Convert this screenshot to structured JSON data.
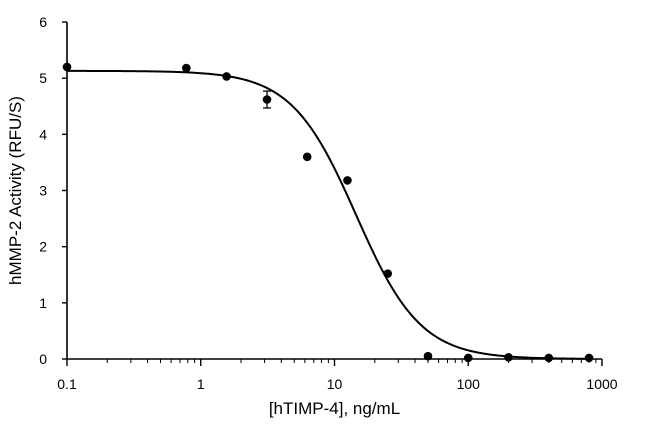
{
  "chart_data": {
    "type": "scatter",
    "title": "",
    "xlabel": "[hTIMP-4], ng/mL",
    "ylabel": "hMMP-2 Activity  (RFU/S)",
    "x_scale": "log",
    "xlim": [
      0.1,
      1000
    ],
    "ylim": [
      0,
      6
    ],
    "x_ticks": [
      0.1,
      1,
      10,
      100,
      1000
    ],
    "x_tick_labels": [
      "0.1",
      "1",
      "10",
      "100",
      "1000"
    ],
    "y_ticks": [
      0,
      1,
      2,
      3,
      4,
      5,
      6
    ],
    "y_tick_labels": [
      "0",
      "1",
      "2",
      "3",
      "4",
      "5",
      "6"
    ],
    "grid": false,
    "legend": "none",
    "series": [
      {
        "points": [
          {
            "x": 0.1,
            "y": 5.2
          },
          {
            "x": 0.78,
            "y": 5.18
          },
          {
            "x": 1.56,
            "y": 5.03
          },
          {
            "x": 3.13,
            "y": 4.62,
            "err": 0.15
          },
          {
            "x": 6.25,
            "y": 3.6
          },
          {
            "x": 12.5,
            "y": 3.18
          },
          {
            "x": 25,
            "y": 1.52
          },
          {
            "x": 50,
            "y": 0.05
          },
          {
            "x": 100,
            "y": 0.02
          },
          {
            "x": 200,
            "y": 0.03
          },
          {
            "x": 400,
            "y": 0.02
          },
          {
            "x": 800,
            "y": 0.02
          }
        ],
        "fit": {
          "model": "4PL",
          "top": 5.13,
          "bottom": 0.0,
          "ec50": 14.5,
          "hill": 1.8
        }
      }
    ],
    "colors": {
      "marker": "#000000",
      "line": "#000000",
      "axis": "#000000"
    }
  }
}
